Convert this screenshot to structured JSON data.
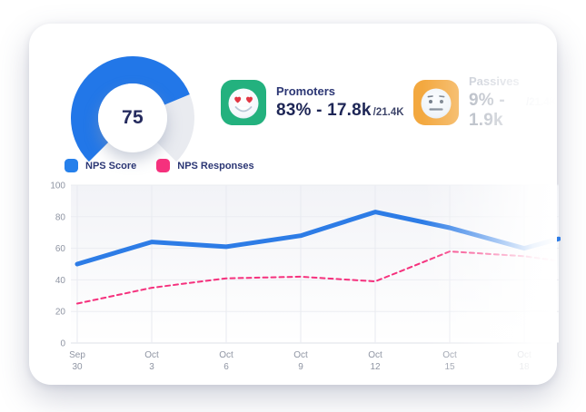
{
  "gauge": {
    "value": 75,
    "color": "#2277e8",
    "track_color": "#e9ebf0"
  },
  "stats": [
    {
      "label": "Promoters",
      "value_text": "83% - 17.8k",
      "total_text": "/21.4K",
      "icon": "heart-eyes-emoji-icon",
      "icon_bg": "#23b17e"
    },
    {
      "label": "Passives",
      "value_text": "9% - 1.9k",
      "total_text": "/21.4K",
      "icon": "neutral-face-emoji-icon",
      "icon_bg": "#f3a83f"
    }
  ],
  "legend": {
    "items": [
      {
        "label": "NPS Score",
        "color": "#2680eb"
      },
      {
        "label": "NPS Responses",
        "color": "#f5317d"
      }
    ]
  },
  "chart_data": {
    "type": "line",
    "categories": [
      {
        "month": "Sep",
        "day": "30"
      },
      {
        "month": "Oct",
        "day": "3"
      },
      {
        "month": "Oct",
        "day": "6"
      },
      {
        "month": "Oct",
        "day": "9"
      },
      {
        "month": "Oct",
        "day": "12"
      },
      {
        "month": "Oct",
        "day": "15"
      },
      {
        "month": "Oct",
        "day": "18"
      }
    ],
    "series": [
      {
        "name": "NPS Responses",
        "color": "#f5317d",
        "width": 2,
        "dash": "5 4",
        "values": [
          25,
          35,
          41,
          42,
          39,
          58,
          55,
          52
        ]
      },
      {
        "name": "NPS Score",
        "color": "#2d7ce6",
        "width": 5,
        "dash": null,
        "values": [
          50,
          64,
          61,
          68,
          83,
          73,
          60,
          66
        ]
      }
    ],
    "title": "",
    "xlabel": "",
    "ylabel": "",
    "ylim": [
      0,
      100
    ],
    "yticks": [
      0,
      20,
      40,
      60,
      80,
      100
    ],
    "grid": true,
    "legend_position": "top-left",
    "note_last_point_fades_out": true
  }
}
